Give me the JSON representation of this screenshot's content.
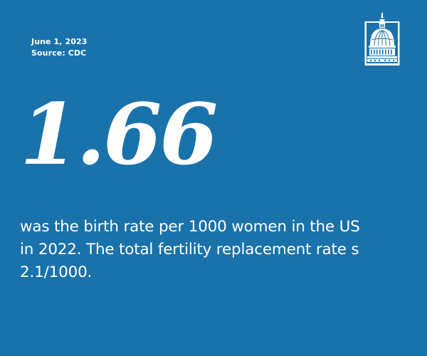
{
  "meta": {
    "date": "June 1, 2023",
    "source": "Source: CDC"
  },
  "logo": {
    "icon": "capitol-dome-icon"
  },
  "stat": {
    "value": "1.66"
  },
  "description": {
    "lines": [
      "was the birth rate per 1000 women in the US",
      "in 2022. The total fertility replacement rate s",
      "2.1/1000."
    ]
  },
  "colors": {
    "background": "#1a72aa",
    "text": "#ffffff"
  }
}
